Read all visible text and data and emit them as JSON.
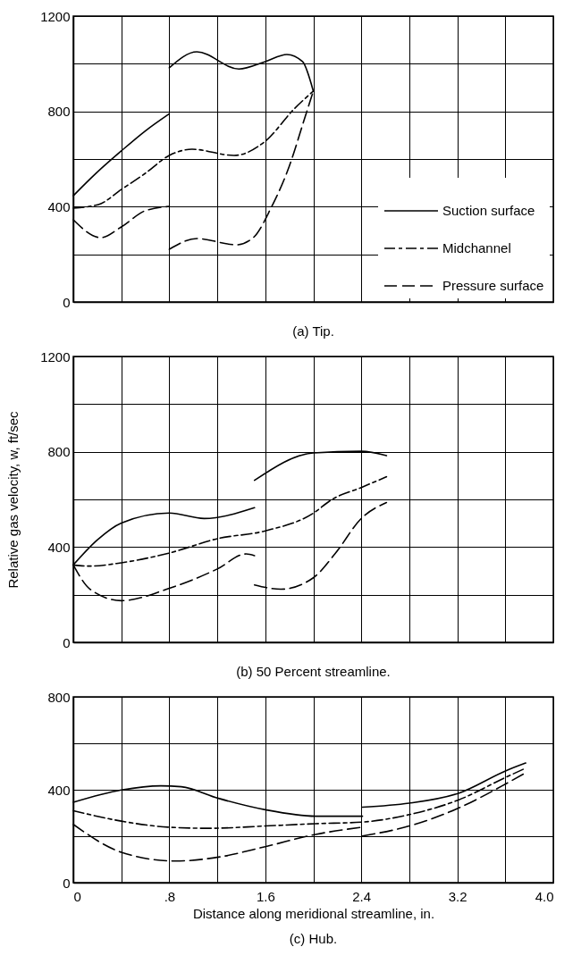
{
  "chart_data": [
    {
      "type": "line",
      "title": "(a) Tip.",
      "legend": "bottom right",
      "grid": true,
      "tick_labels": "y",
      "xlim": [
        0,
        4
      ],
      "xticks": [
        {
          "value": 0,
          "label": null
        },
        {
          "value": 0.4,
          "label": null
        },
        {
          "value": 0.8,
          "label": null
        },
        {
          "value": 1.2,
          "label": null
        },
        {
          "value": 1.6,
          "label": null
        },
        {
          "value": 2.0,
          "label": null
        },
        {
          "value": 2.4,
          "label": null
        },
        {
          "value": 2.8,
          "label": null
        },
        {
          "value": 3.2,
          "label": null
        },
        {
          "value": 3.6,
          "label": null
        },
        {
          "value": 4.0,
          "label": null
        }
      ],
      "ylim": [
        0,
        1200
      ],
      "yticks": [
        0,
        {
          "value": 200,
          "label": null
        },
        400,
        {
          "value": 600,
          "label": null
        },
        800,
        {
          "value": 1000,
          "label": null
        },
        1200
      ],
      "series": [
        {
          "name": "Suction surface",
          "color": "#000000",
          "line_style": "solid",
          "x": [
            0,
            0.2,
            0.4,
            0.6,
            0.8,
            null,
            0.8,
            1.03,
            1.38,
            1.6,
            1.78,
            1.91,
            2.0
          ],
          "values": [
            446,
            545,
            634,
            718,
            790,
            null,
            983,
            1050,
            978,
            1009,
            1039,
            1009,
            885
          ]
        },
        {
          "name": "Midchannel",
          "color": "#000000",
          "line_style": "dashdot",
          "x": [
            0,
            0.21,
            0.4,
            0.6,
            0.8,
            0.99,
            1.34,
            1.6,
            1.84,
            2.0
          ],
          "values": [
            394,
            409,
            472,
            540,
            615,
            641,
            615,
            675,
            810,
            885
          ]
        },
        {
          "name": "Pressure surface",
          "color": "#000000",
          "line_style": "dashed",
          "x": [
            0,
            0.23,
            0.4,
            0.6,
            0.8,
            null,
            0.8,
            1.03,
            1.36,
            1.5,
            1.65,
            1.8,
            1.92,
            2.0
          ],
          "values": [
            345,
            270,
            315,
            383,
            401,
            null,
            221,
            266,
            240,
            270,
            397,
            570,
            758,
            885
          ]
        }
      ]
    },
    {
      "type": "line",
      "title": "(b) 50 Percent streamline.",
      "ylabel": "Relative gas velocity, w, ft/sec",
      "grid": true,
      "tick_labels": "y",
      "xlim": [
        0,
        4
      ],
      "xticks": [
        {
          "value": 0,
          "label": null
        },
        {
          "value": 0.4,
          "label": null
        },
        {
          "value": 0.8,
          "label": null
        },
        {
          "value": 1.2,
          "label": null
        },
        {
          "value": 1.6,
          "label": null
        },
        {
          "value": 2.0,
          "label": null
        },
        {
          "value": 2.4,
          "label": null
        },
        {
          "value": 2.8,
          "label": null
        },
        {
          "value": 3.2,
          "label": null
        },
        {
          "value": 3.6,
          "label": null
        },
        {
          "value": 4.0,
          "label": null
        }
      ],
      "ylim": [
        0,
        1200
      ],
      "yticks": [
        0,
        {
          "value": 200,
          "label": null
        },
        400,
        {
          "value": 600,
          "label": null
        },
        800,
        {
          "value": 1000,
          "label": null
        },
        1200
      ],
      "series": [
        {
          "color": "#000000",
          "line_style": "solid",
          "x": [
            0,
            0.2,
            0.4,
            0.8,
            1.09,
            1.51,
            null,
            1.51,
            2.0,
            2.4,
            2.61
          ],
          "values": [
            325,
            430,
            501,
            543,
            520,
            565,
            null,
            680,
            795,
            802,
            784
          ]
        },
        {
          "color": "#000000",
          "line_style": "dashdot",
          "x": [
            0,
            0.14,
            0.4,
            0.8,
            1.2,
            1.6,
            2.0,
            2.15,
            2.4,
            2.61
          ],
          "values": [
            325,
            320,
            334,
            375,
            435,
            468,
            542,
            598,
            650,
            695
          ]
        },
        {
          "color": "#000000",
          "line_style": "dashed",
          "x": [
            0,
            0.14,
            0.4,
            0.8,
            1.2,
            1.44,
            1.51,
            null,
            1.51,
            1.73,
            2.0,
            2.18,
            2.4,
            2.61
          ],
          "values": [
            325,
            223,
            175,
            227,
            308,
            371,
            364,
            null,
            241,
            223,
            271,
            371,
            520,
            587
          ]
        }
      ]
    },
    {
      "type": "line",
      "title": "(c) Hub.",
      "xlabel": "Distance along meridional streamline, in.",
      "grid": true,
      "xlim": [
        0,
        4
      ],
      "xticks": [
        0,
        {
          "value": 0.4,
          "label": null
        },
        {
          "value": 0.8,
          "label": ".8"
        },
        {
          "value": 1.2,
          "label": null
        },
        1.6,
        {
          "value": 2.0,
          "label": null
        },
        2.4,
        {
          "value": 2.8,
          "label": null
        },
        3.2,
        {
          "value": 3.6,
          "label": null
        },
        {
          "value": 4.0,
          "label": "4.0"
        }
      ],
      "ylim": [
        0,
        800
      ],
      "yticks": [
        0,
        {
          "value": 200,
          "label": null
        },
        400,
        {
          "value": 600,
          "label": null
        },
        800
      ],
      "series": [
        {
          "color": "#000000",
          "line_style": "solid",
          "x": [
            0,
            0.4,
            0.73,
            0.9,
            1.21,
            1.6,
            2.02,
            2.41,
            null,
            2.41,
            2.8,
            3.21,
            3.61,
            3.77
          ],
          "values": [
            346,
            399,
            417,
            413,
            363,
            314,
            286,
            286,
            null,
            325,
            342,
            385,
            483,
            515
          ]
        },
        {
          "color": "#000000",
          "line_style": "dashdot",
          "x": [
            0,
            0.4,
            0.79,
            1.13,
            1.6,
            2.02,
            2.41,
            2.8,
            3.21,
            3.61,
            3.77
          ],
          "values": [
            310,
            265,
            239,
            234,
            244,
            254,
            261,
            293,
            356,
            455,
            493
          ]
        },
        {
          "color": "#000000",
          "line_style": "dashed",
          "x": [
            0,
            0.4,
            0.85,
            1.21,
            1.6,
            2.02,
            2.41,
            null,
            2.41,
            2.8,
            3.21,
            3.61,
            3.77
          ],
          "values": [
            251,
            131,
            93,
            110,
            155,
            208,
            239,
            null,
            201,
            244,
            321,
            427,
            473
          ]
        }
      ]
    }
  ]
}
